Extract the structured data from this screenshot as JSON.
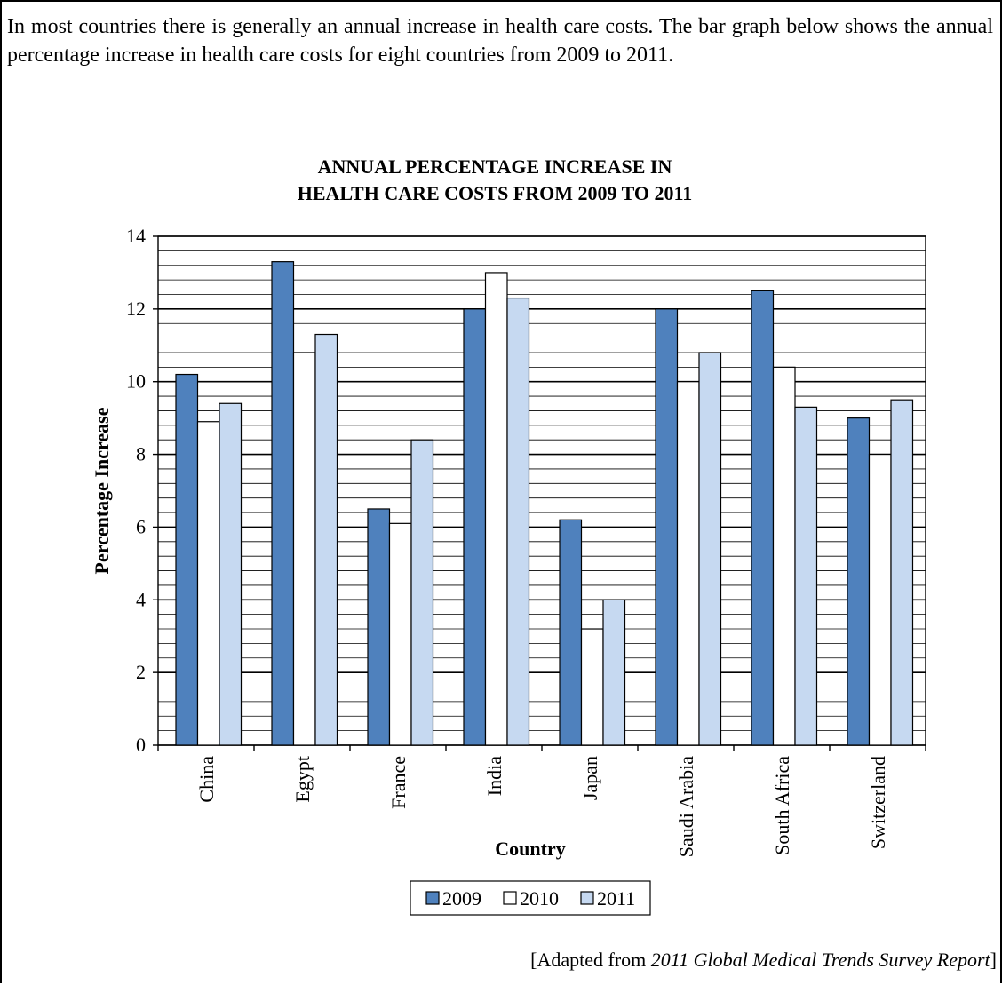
{
  "intro_text": "In most countries there is generally an annual increase in health care costs. The bar graph below shows the annual percentage increase in health care costs for eight countries from 2009 to 2011.",
  "source": {
    "prefix": "[Adapted from ",
    "title": "2011 Global Medical Trends Survey Report",
    "suffix": "]"
  },
  "colors": {
    "series_2009": "#4f81bd",
    "series_2010": "#ffffff",
    "series_2011": "#c6d9f1",
    "bar_outline": "#000000"
  },
  "chart_data": {
    "type": "bar",
    "title": [
      "ANNUAL PERCENTAGE INCREASE IN",
      "HEALTH CARE COSTS FROM 2009 TO 2011"
    ],
    "xlabel": "Country",
    "ylabel": "Percentage Increase",
    "categories": [
      "China",
      "Egypt",
      "France",
      "India",
      "Japan",
      "Saudi Arabia",
      "South Africa",
      "Switzerland"
    ],
    "series": [
      {
        "name": "2009",
        "values": [
          10.2,
          13.3,
          6.5,
          12.0,
          6.2,
          12.0,
          12.5,
          9.0
        ]
      },
      {
        "name": "2010",
        "values": [
          8.9,
          10.8,
          6.1,
          13.0,
          3.2,
          10.0,
          10.4,
          8.0
        ]
      },
      {
        "name": "2011",
        "values": [
          9.4,
          11.3,
          8.4,
          12.3,
          4.0,
          10.8,
          9.3,
          9.5
        ]
      }
    ],
    "ylim": [
      0,
      14
    ],
    "yticks": [
      0,
      2,
      4,
      6,
      8,
      10,
      12,
      14
    ],
    "minor_grid_step": 0.4,
    "grid": true,
    "legend_position": "bottom"
  }
}
